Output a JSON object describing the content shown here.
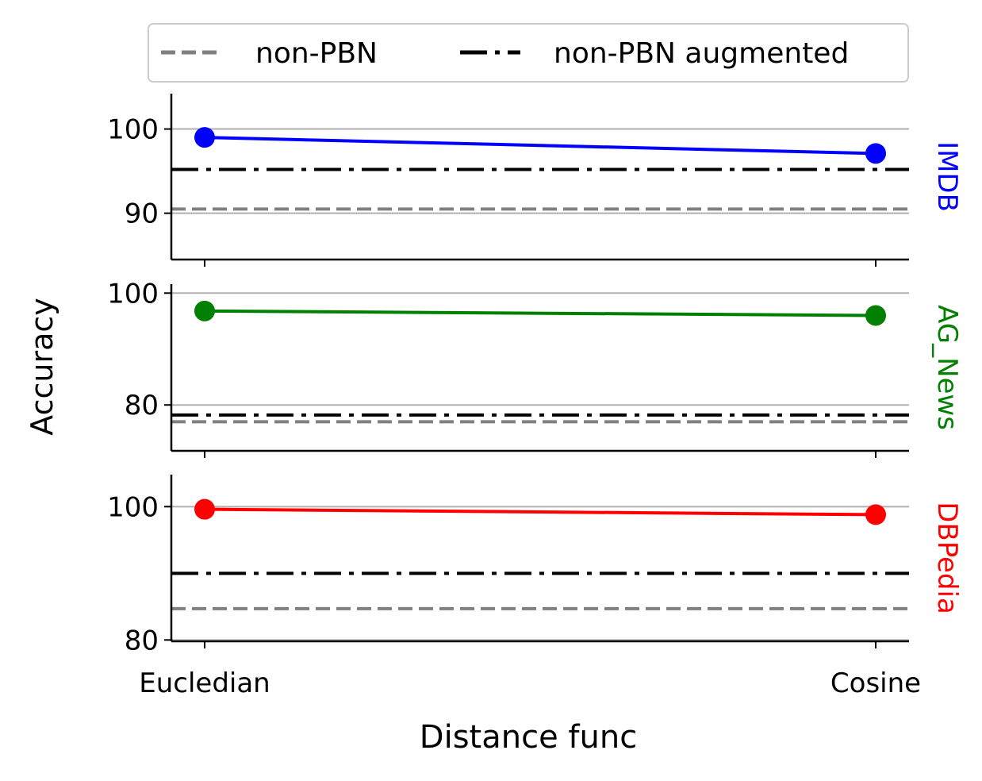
{
  "chart_data": {
    "type": "line",
    "xlabel": "Distance func",
    "ylabel": "Accuracy",
    "categories": [
      "Eucledian",
      "Cosine"
    ],
    "legend": {
      "placement": "top",
      "entries": [
        {
          "label": "non-PBN",
          "style": "dashed",
          "color": "#808080"
        },
        {
          "label": "non-PBN augmented",
          "style": "dashdot",
          "color": "#000000"
        }
      ]
    },
    "grid": "horizontal",
    "panels": [
      {
        "name": "IMDB",
        "color": "#0000ff",
        "values": [
          99.0,
          97.1
        ],
        "non_pbn": 90.5,
        "non_pbn_augmented": 95.2,
        "ylim": [
          84.5,
          104.2
        ],
        "yticks": [
          "90",
          "100"
        ]
      },
      {
        "name": "AG_News",
        "color": "#008000",
        "values": [
          96.8,
          96.0
        ],
        "non_pbn": 77.0,
        "non_pbn_augmented": 78.2,
        "ylim": [
          71.8,
          101.6
        ],
        "yticks": [
          "80",
          "100"
        ]
      },
      {
        "name": "DBPedia",
        "color": "#ff0000",
        "values": [
          99.6,
          98.8
        ],
        "non_pbn": 84.7,
        "non_pbn_augmented": 90.0,
        "ylim": [
          79.8,
          104.8
        ],
        "yticks": [
          "80",
          "100"
        ]
      }
    ]
  }
}
